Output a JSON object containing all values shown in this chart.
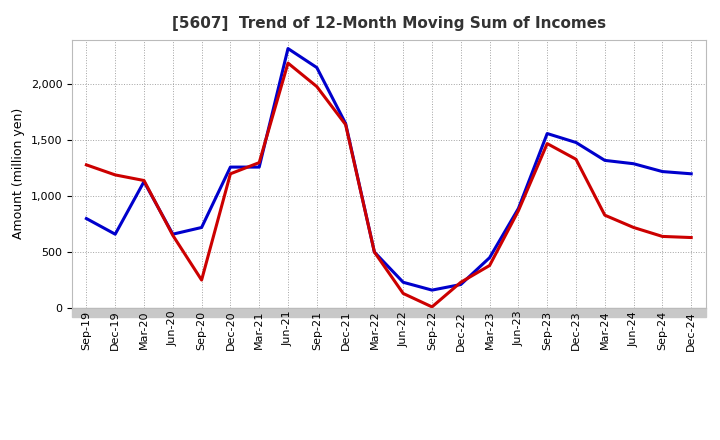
{
  "title": "[5607]  Trend of 12-Month Moving Sum of Incomes",
  "ylabel": "Amount (million yen)",
  "xlabels": [
    "Sep-19",
    "Dec-19",
    "Mar-20",
    "Jun-20",
    "Sep-20",
    "Dec-20",
    "Mar-21",
    "Jun-21",
    "Sep-21",
    "Dec-21",
    "Mar-22",
    "Jun-22",
    "Sep-22",
    "Dec-22",
    "Mar-23",
    "Jun-23",
    "Sep-23",
    "Dec-23",
    "Mar-24",
    "Jun-24",
    "Sep-24",
    "Dec-24"
  ],
  "ordinary_income": [
    800,
    660,
    1130,
    660,
    720,
    1260,
    1260,
    2320,
    2150,
    1650,
    500,
    230,
    160,
    210,
    450,
    890,
    1560,
    1480,
    1320,
    1290,
    1220,
    1200
  ],
  "net_income": [
    1280,
    1190,
    1140,
    650,
    250,
    1200,
    1300,
    2190,
    1980,
    1640,
    500,
    130,
    10,
    230,
    380,
    870,
    1470,
    1330,
    830,
    720,
    640,
    630
  ],
  "ordinary_color": "#0000cc",
  "net_color": "#cc0000",
  "ylim": [
    0,
    2400
  ],
  "yticks": [
    0,
    500,
    1000,
    1500,
    2000
  ],
  "background_color": "#ffffff",
  "grid_color": "#999999",
  "line_width": 2.2,
  "title_fontsize": 11,
  "title_color": "#333333",
  "label_fontsize": 9,
  "tick_fontsize": 8,
  "legend_fontsize": 9
}
